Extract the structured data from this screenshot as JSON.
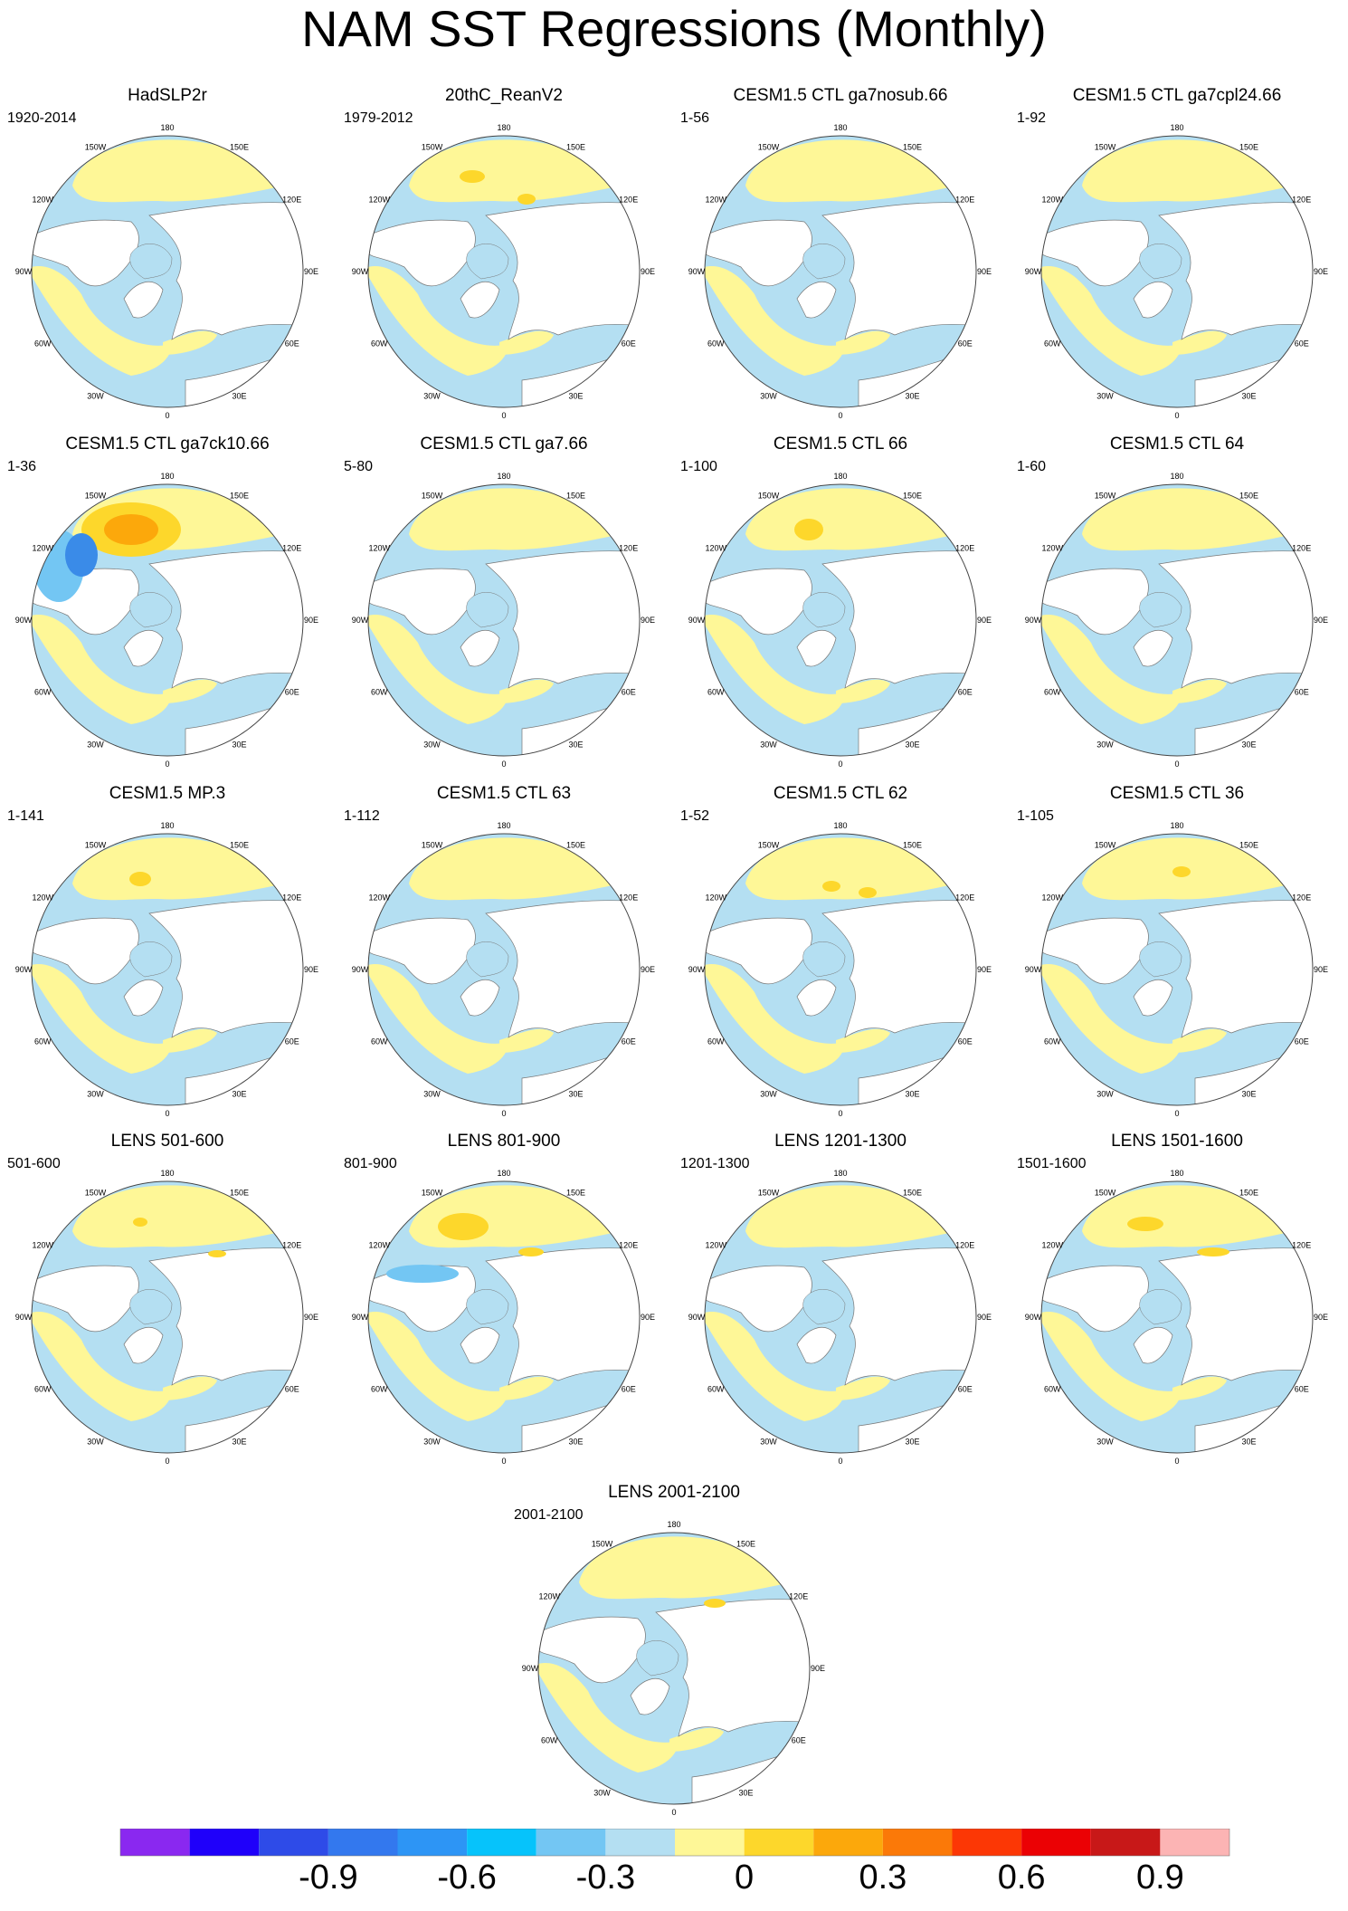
{
  "title": "NAM SST Regressions (Monthly)",
  "panels": [
    {
      "title": "HadSLP2r",
      "period": "1920-2014"
    },
    {
      "title": "20thC_ReanV2",
      "period": "1979-2012"
    },
    {
      "title": "CESM1.5 CTL ga7nosub.66",
      "period": "1-56"
    },
    {
      "title": "CESM1.5 CTL ga7cpl24.66",
      "period": "1-92"
    },
    {
      "title": "CESM1.5 CTL ga7ck10.66",
      "period": "1-36"
    },
    {
      "title": "CESM1.5 CTL ga7.66",
      "period": "5-80"
    },
    {
      "title": "CESM1.5 CTL 66",
      "period": "1-100"
    },
    {
      "title": "CESM1.5 CTL 64",
      "period": "1-60"
    },
    {
      "title": "CESM1.5 MP.3",
      "period": "1-141"
    },
    {
      "title": "CESM1.5 CTL 63",
      "period": "1-112"
    },
    {
      "title": "CESM1.5 CTL 62",
      "period": "1-52"
    },
    {
      "title": "CESM1.5 CTL 36",
      "period": "1-105"
    },
    {
      "title": "LENS 501-600",
      "period": "501-600"
    },
    {
      "title": "LENS 801-900",
      "period": "801-900"
    },
    {
      "title": "LENS 1201-1300",
      "period": "1201-1300"
    },
    {
      "title": "LENS 1501-1600",
      "period": "1501-1600"
    },
    {
      "title": "LENS 2001-2100",
      "period": "2001-2100"
    }
  ],
  "lon_labels": [
    "180",
    "150E",
    "120E",
    "90E",
    "60E",
    "30E",
    "0",
    "30W",
    "60W",
    "90W",
    "120W",
    "150W"
  ],
  "colorbar": {
    "colors": [
      "#8a28f0",
      "#1f00fa",
      "#2e4be8",
      "#3378ee",
      "#2d95f5",
      "#06c3fb",
      "#73c6f3",
      "#b4dff2",
      "#fef797",
      "#fdd72b",
      "#fca80b",
      "#fb7908",
      "#fc3705",
      "#eb0104",
      "#c81818",
      "#fcb4b4"
    ],
    "labels": [
      "-0.9",
      "-0.6",
      "-0.3",
      "0",
      "0.3",
      "0.6",
      "0.9"
    ]
  },
  "map_colors": {
    "ocean_neg": "#b4dff2",
    "ocean_pos": "#fef797",
    "moderate_neg": "#73c6f3",
    "moderate_pos": "#fdd72b",
    "strong_pos": "#fca80b",
    "strong_neg": "#3a8be8",
    "land": "#ffffff"
  }
}
